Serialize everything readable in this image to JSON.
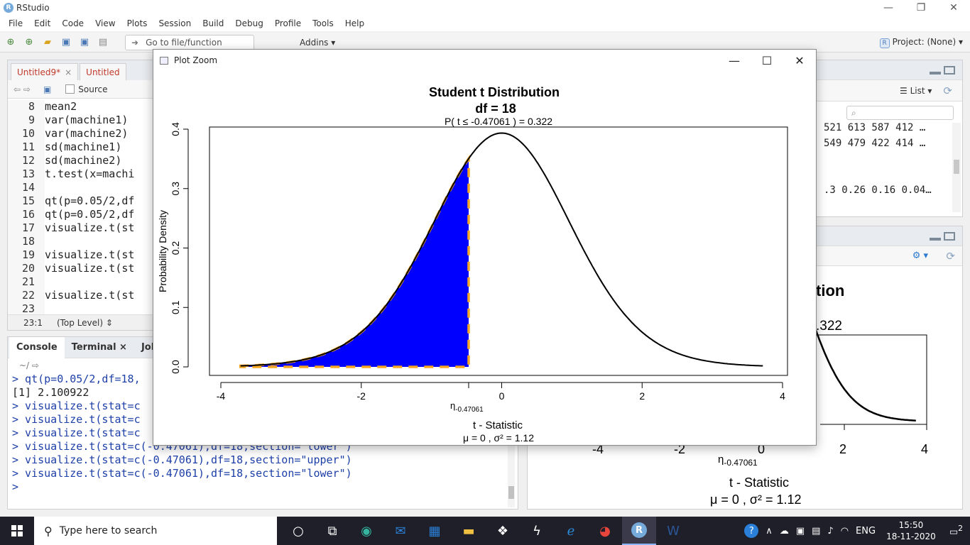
{
  "window": {
    "title": "RStudio",
    "min": "—",
    "restore": "❐",
    "close": "✕"
  },
  "menu": [
    "File",
    "Edit",
    "Code",
    "View",
    "Plots",
    "Session",
    "Build",
    "Debug",
    "Profile",
    "Tools",
    "Help"
  ],
  "toolbar": {
    "goto_placeholder": "Go to file/function",
    "addins": "Addins ▾",
    "project": "Project: (None) ▾"
  },
  "source": {
    "tabs": [
      {
        "label": "Untitled9*",
        "close": "×"
      },
      {
        "label": "Untitled"
      }
    ],
    "source_on_save": "Source",
    "lines": [
      {
        "n": "8",
        "text": "mean2"
      },
      {
        "n": "9",
        "text": "var(machine1)"
      },
      {
        "n": "10",
        "text": "var(machine2)"
      },
      {
        "n": "11",
        "text": "sd(machine1)"
      },
      {
        "n": "12",
        "text": "sd(machine2)"
      },
      {
        "n": "13",
        "text": "t.test(x=machi"
      },
      {
        "n": "14",
        "text": ""
      },
      {
        "n": "15",
        "text": "qt(p=0.05/2,df"
      },
      {
        "n": "16",
        "text": "qt(p=0.05/2,df"
      },
      {
        "n": "17",
        "text": "visualize.t(st"
      },
      {
        "n": "18",
        "text": ""
      },
      {
        "n": "19",
        "text": "visualize.t(st"
      },
      {
        "n": "20",
        "text": "visualize.t(st"
      },
      {
        "n": "21",
        "text": ""
      },
      {
        "n": "22",
        "text": "visualize.t(st"
      },
      {
        "n": "23",
        "text": ""
      }
    ],
    "cursor_pos": "23:1",
    "scope": "(Top Level) ⇕"
  },
  "console": {
    "tabs": [
      "Console",
      "Terminal ×",
      "Jobs"
    ],
    "path": "~/ ⇨",
    "lines": [
      {
        "text": "> qt(p=0.05/2,df=18,",
        "type": "in"
      },
      {
        "text": "[1] 2.100922",
        "type": "out"
      },
      {
        "text": "> visualize.t(stat=c",
        "type": "in"
      },
      {
        "text": "> visualize.t(stat=c",
        "type": "in"
      },
      {
        "text": "> visualize.t(stat=c",
        "type": "in"
      },
      {
        "text": "> visualize.t(stat=c(-0.47061),df=18,section=\"lower\")",
        "type": "in"
      },
      {
        "text": "> visualize.t(stat=c(-0.47061),df=18,section=\"upper\")",
        "type": "in"
      },
      {
        "text": "> visualize.t(stat=c(-0.47061),df=18,section=\"lower\")",
        "type": "in"
      },
      {
        "text": "> ",
        "type": "in"
      }
    ]
  },
  "environment": {
    "view_mode": "List ▾",
    "rows": [
      "521 613 587 412 …",
      "549 479 422 414 …",
      "",
      "",
      ".3 0.26 0.16 0.04…"
    ]
  },
  "plots_pane": {
    "title_fragment": "tion",
    "prob_fragment": ".322",
    "ticks": [
      "-4",
      "-2",
      "0",
      "2",
      "4"
    ],
    "eta_label": "η",
    "eta_sub": "-0.47061",
    "xlabel": "t - Statistic",
    "stats": "μ = 0 , σ² = 1.12"
  },
  "zoom": {
    "title": "Plot Zoom",
    "min": "—",
    "max": "☐",
    "close": "✕"
  },
  "chart_data": {
    "type": "area",
    "title": "Student t Distribution",
    "subtitle": "df = 18",
    "annotation": "P( t ≤ -0.47061 ) = 0.322",
    "xlabel": "t - Statistic",
    "xlabel_sub": "μ = 0 , σ² = 1.12",
    "ylabel": "Probability Density",
    "df": 18,
    "stat": -0.47061,
    "section": "lower",
    "xlim": [
      -4,
      4
    ],
    "ylim": [
      0,
      0.4
    ],
    "x_curve_range": [
      -3.72,
      3.72
    ],
    "xticks": [
      "-4",
      "-2",
      "0",
      "2",
      "4"
    ],
    "yticks": [
      "0.0",
      "0.1",
      "0.2",
      "0.3",
      "0.4"
    ],
    "eta_label": "η",
    "eta_sub": "-0.47061",
    "fill_color": "#0000ff",
    "border_color": "#f5a623",
    "curve_color": "#000000"
  },
  "taskbar": {
    "search_placeholder": "Type here to search",
    "lang": "ENG",
    "time": "15:50",
    "date": "18-11-2020",
    "notif": "2"
  }
}
